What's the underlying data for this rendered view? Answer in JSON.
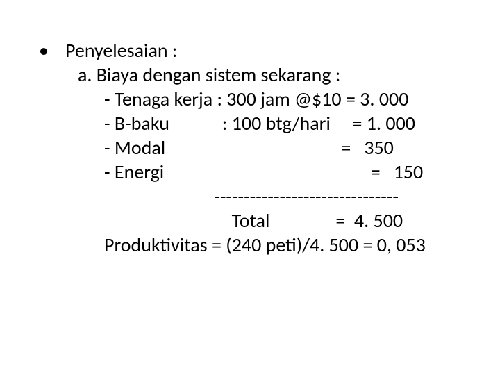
{
  "document": {
    "font_family": "Calibri",
    "font_size_pt": 28,
    "text_color": "#000000",
    "background_color": "#ffffff",
    "bullet_glyph": "•",
    "lines": {
      "l1": "Penyelesaian :",
      "l2": "a. Biaya dengan sistem sekarang :",
      "l3": "- Tenaga kerja : 300 jam @$10 = 3. 000",
      "l4": "- B-baku            : 100 btg/hari     = 1. 000",
      "l5": "- Modal                                        =   350",
      "l6": "- Energi                                               =   150",
      "l7": "                         -------------------------------",
      "l8": "                             Total               =  4. 500",
      "l9": "Produktivitas = (240 peti)/4. 500 = 0, 053"
    }
  }
}
